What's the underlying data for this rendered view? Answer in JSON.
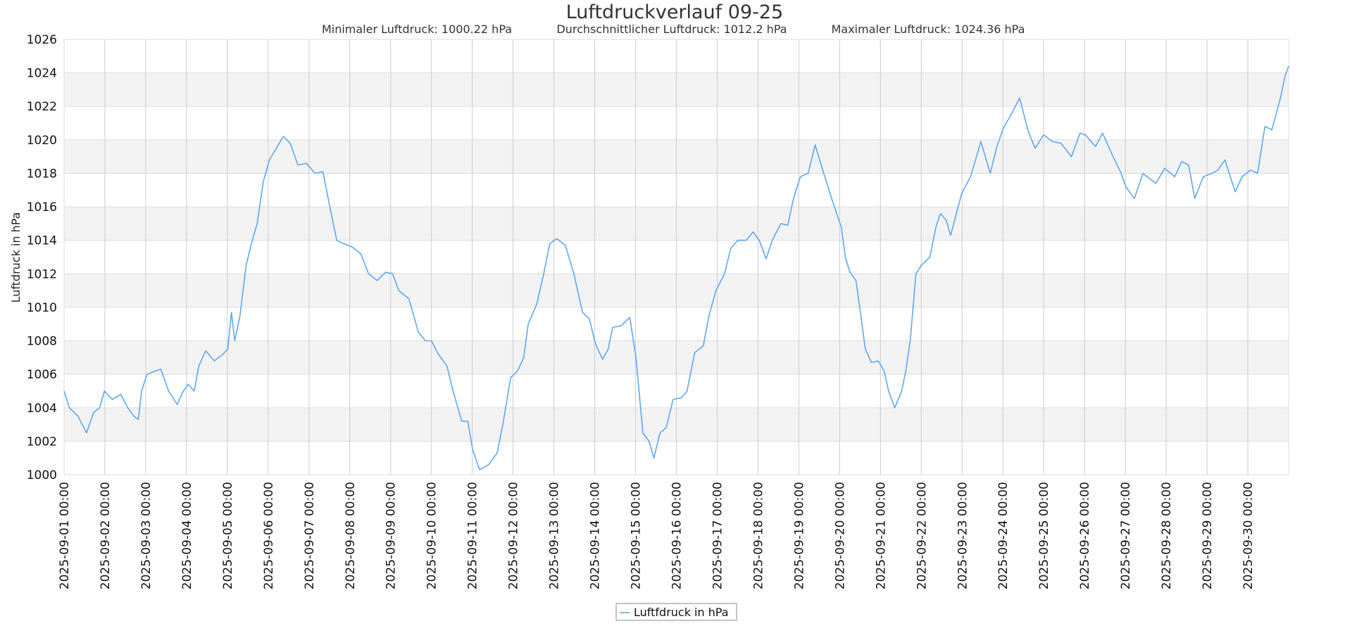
{
  "chart_data": {
    "type": "line",
    "title": "Luftdruckverlauf 09-25",
    "subtitle": {
      "min": "Minimaler Luftdruck: 1000.22 hPa",
      "avg": "Durchschnittlicher Luftdruck: 1012.2 hPa",
      "max": "Maximaler Luftdruck: 1024.36 hPa"
    },
    "ylabel": "Luftdruck in hPa",
    "xlabel": "",
    "ylim": [
      1000,
      1026
    ],
    "yticks": [
      1000,
      1002,
      1004,
      1006,
      1008,
      1010,
      1012,
      1014,
      1016,
      1018,
      1020,
      1022,
      1024,
      1026
    ],
    "x_unit": "days since 2025-09-01 00:00",
    "xlim": [
      0,
      30
    ],
    "xticks": [
      "2025-09-01 00:00",
      "2025-09-02 00:00",
      "2025-09-03 00:00",
      "2025-09-04 00:00",
      "2025-09-05 00:00",
      "2025-09-06 00:00",
      "2025-09-07 00:00",
      "2025-09-08 00:00",
      "2025-09-09 00:00",
      "2025-09-10 00:00",
      "2025-09-11 00:00",
      "2025-09-12 00:00",
      "2025-09-13 00:00",
      "2025-09-14 00:00",
      "2025-09-15 00:00",
      "2025-09-16 00:00",
      "2025-09-17 00:00",
      "2025-09-18 00:00",
      "2025-09-19 00:00",
      "2025-09-20 00:00",
      "2025-09-21 00:00",
      "2025-09-22 00:00",
      "2025-09-23 00:00",
      "2025-09-24 00:00",
      "2025-09-25 00:00",
      "2025-09-26 00:00",
      "2025-09-27 00:00",
      "2025-09-28 00:00",
      "2025-09-29 00:00",
      "2025-09-30 00:00"
    ],
    "grid": true,
    "legend": {
      "position": "bottom-center",
      "entries": [
        "Luftfdruck in hPa"
      ]
    },
    "series": [
      {
        "name": "Luftfdruck in hPa",
        "color": "#5fa8f0",
        "x": [
          0,
          0.13,
          0.34,
          0.55,
          0.72,
          0.87,
          0.99,
          1.18,
          1.39,
          1.56,
          1.71,
          1.82,
          1.9,
          2.03,
          2.24,
          2.37,
          2.56,
          2.77,
          2.92,
          3.04,
          3.19,
          3.3,
          3.47,
          3.68,
          3.89,
          4.01,
          4.1,
          4.18,
          4.31,
          4.46,
          4.61,
          4.73,
          4.88,
          5.03,
          5.2,
          5.37,
          5.54,
          5.73,
          5.94,
          6.15,
          6.34,
          6.51,
          6.68,
          6.85,
          7.06,
          7.27,
          7.46,
          7.67,
          7.88,
          8.05,
          8.2,
          8.45,
          8.68,
          8.85,
          9.0,
          9.17,
          9.38,
          9.53,
          9.74,
          9.89,
          10.01,
          10.18,
          10.4,
          10.61,
          10.75,
          10.94,
          11.11,
          11.26,
          11.37,
          11.58,
          11.75,
          11.9,
          12.07,
          12.28,
          12.49,
          12.7,
          12.87,
          13.02,
          13.19,
          13.33,
          13.44,
          13.65,
          13.86,
          14.01,
          14.18,
          14.33,
          14.45,
          14.6,
          14.75,
          14.92,
          15.13,
          15.26,
          15.45,
          15.66,
          15.8,
          15.97,
          16.18,
          16.33,
          16.5,
          16.71,
          16.88,
          17.03,
          17.2,
          17.35,
          17.56,
          17.73,
          17.87,
          18.04,
          18.23,
          18.4,
          18.61,
          18.83,
          19.04,
          19.14,
          19.25,
          19.4,
          19.52,
          19.63,
          19.78,
          19.95,
          20.09,
          20.2,
          20.35,
          20.52,
          20.62,
          20.73,
          20.87,
          21.0,
          21.21,
          21.36,
          21.47,
          21.61,
          21.72,
          21.85,
          21.99,
          22.21,
          22.46,
          22.69,
          22.84,
          23.01,
          23.2,
          23.41,
          23.62,
          23.79,
          24.0,
          24.21,
          24.42,
          24.68,
          24.89,
          25.02,
          25.27,
          25.44,
          25.7,
          25.9,
          26.01,
          26.22,
          26.43,
          26.75,
          26.96,
          27.21,
          27.38,
          27.55,
          27.7,
          27.91,
          28.12,
          28.27,
          28.44,
          28.69,
          28.86,
          29.07,
          29.24,
          29.42,
          29.59,
          29.8,
          29.91,
          30.0
        ],
        "y": [
          1005.0,
          1004.0,
          1003.5,
          1002.5,
          1003.7,
          1004.0,
          1005.0,
          1004.5,
          1004.8,
          1004.0,
          1003.5,
          1003.3,
          1005.0,
          1006.0,
          1006.2,
          1006.3,
          1005.0,
          1004.2,
          1005.0,
          1005.4,
          1005.0,
          1006.5,
          1007.4,
          1006.8,
          1007.2,
          1007.5,
          1009.7,
          1008.0,
          1009.5,
          1012.5,
          1014.0,
          1015.0,
          1017.5,
          1018.8,
          1019.5,
          1020.2,
          1019.8,
          1018.5,
          1018.6,
          1018.0,
          1018.1,
          1016.0,
          1014.0,
          1013.8,
          1013.6,
          1013.2,
          1012.0,
          1011.6,
          1012.1,
          1012.0,
          1011.0,
          1010.5,
          1008.5,
          1008.0,
          1008.0,
          1007.2,
          1006.5,
          1005.0,
          1003.2,
          1003.2,
          1001.5,
          1000.3,
          1000.6,
          1001.3,
          1003.0,
          1005.8,
          1006.2,
          1007.0,
          1009.0,
          1010.2,
          1012.0,
          1013.8,
          1014.1,
          1013.7,
          1012.0,
          1009.7,
          1009.3,
          1007.8,
          1006.9,
          1007.5,
          1008.8,
          1008.9,
          1009.4,
          1007.0,
          1002.5,
          1002.0,
          1001.0,
          1002.5,
          1002.8,
          1004.5,
          1004.6,
          1005.0,
          1007.3,
          1007.7,
          1009.5,
          1011.0,
          1012.0,
          1013.5,
          1014.0,
          1014.0,
          1014.5,
          1014.0,
          1012.9,
          1014.0,
          1015.0,
          1014.9,
          1016.5,
          1017.8,
          1018.0,
          1019.7,
          1018.0,
          1016.3,
          1014.8,
          1013.0,
          1012.1,
          1011.6,
          1009.5,
          1007.5,
          1006.7,
          1006.8,
          1006.2,
          1005.0,
          1004.0,
          1005.0,
          1006.2,
          1008.0,
          1012.0,
          1012.5,
          1013.0,
          1014.8,
          1015.6,
          1015.2,
          1014.3,
          1015.5,
          1016.8,
          1017.8,
          1019.9,
          1018.0,
          1019.5,
          1020.7,
          1021.5,
          1022.5,
          1020.5,
          1019.5,
          1020.3,
          1019.9,
          1019.8,
          1019.0,
          1020.4,
          1020.3,
          1019.6,
          1020.4,
          1019.0,
          1018.0,
          1017.2,
          1016.5,
          1018.0,
          1017.4,
          1018.3,
          1017.8,
          1018.7,
          1018.5,
          1016.5,
          1017.8,
          1018.0,
          1018.2,
          1018.8,
          1016.9,
          1017.8,
          1018.2,
          1018.0,
          1020.8,
          1020.6,
          1022.5,
          1023.8,
          1024.4
        ]
      }
    ]
  }
}
